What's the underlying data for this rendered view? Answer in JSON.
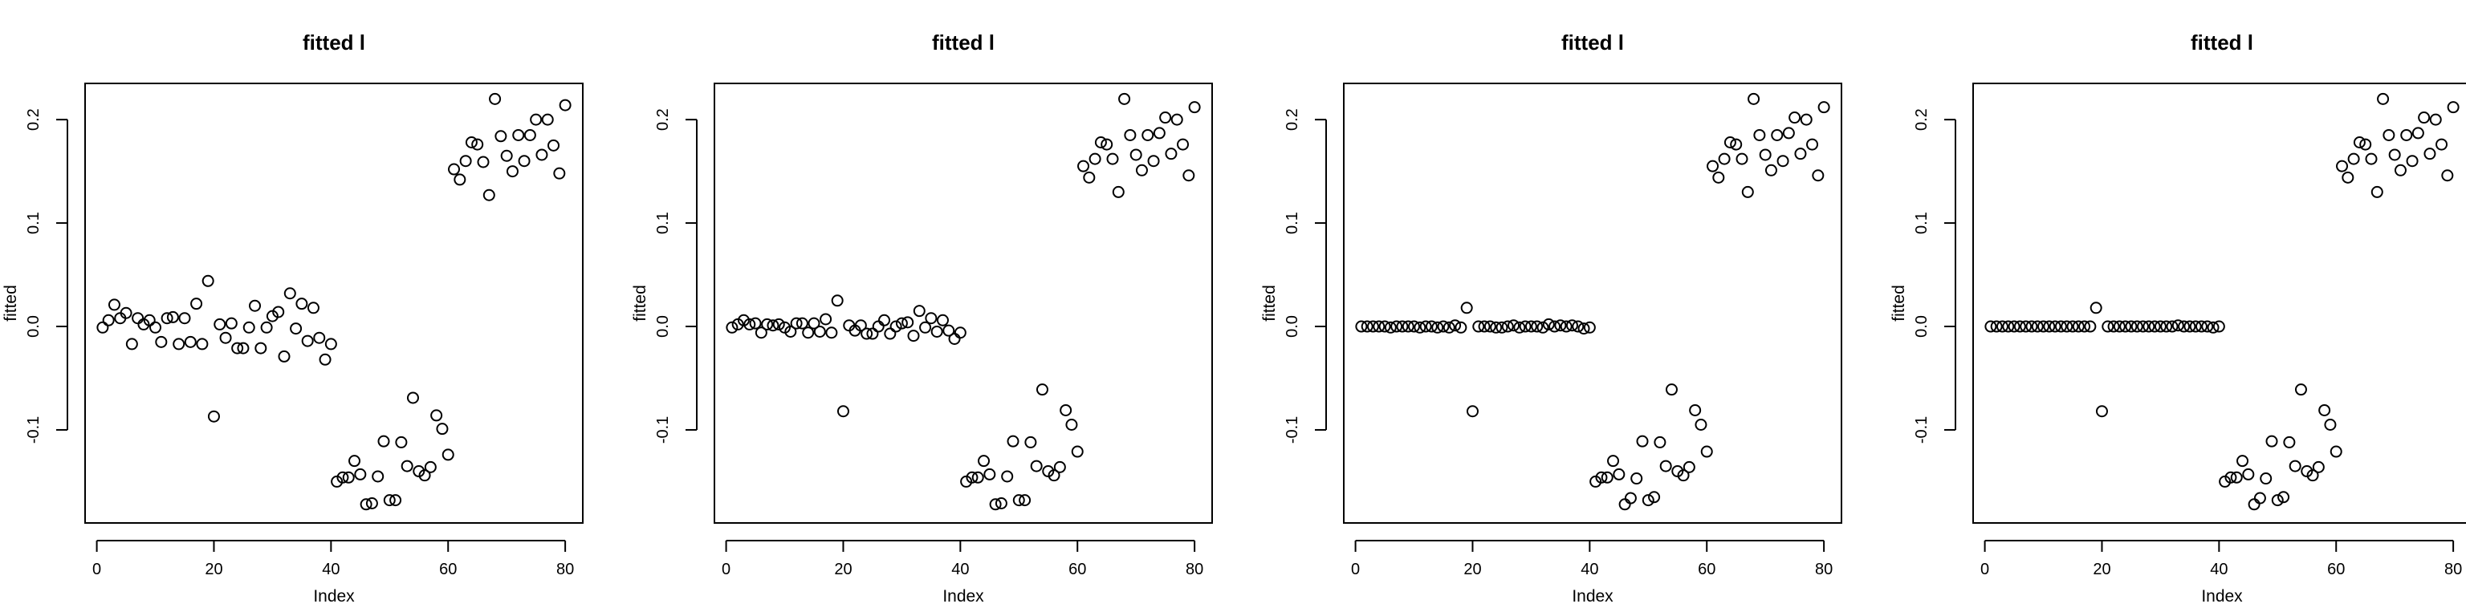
{
  "chart_data": [
    {
      "type": "scatter",
      "title": "fitted l",
      "xlabel": "Index",
      "ylabel": "fitted",
      "xlim": [
        -2,
        83
      ],
      "ylim": [
        -0.19,
        0.235
      ],
      "xticks": [
        0,
        20,
        40,
        60,
        80
      ],
      "yticks": [
        -0.1,
        0.0,
        0.1,
        0.2
      ],
      "grid": false,
      "x": [
        1,
        2,
        3,
        4,
        5,
        6,
        7,
        8,
        9,
        10,
        11,
        12,
        13,
        14,
        15,
        16,
        17,
        18,
        19,
        20,
        21,
        22,
        23,
        24,
        25,
        26,
        27,
        28,
        29,
        30,
        31,
        32,
        33,
        34,
        35,
        36,
        37,
        38,
        39,
        40,
        41,
        42,
        43,
        44,
        45,
        46,
        47,
        48,
        49,
        50,
        51,
        52,
        53,
        54,
        55,
        56,
        57,
        58,
        59,
        60,
        61,
        62,
        63,
        64,
        65,
        66,
        67,
        68,
        69,
        70,
        71,
        72,
        73,
        74,
        75,
        76,
        77,
        78,
        79,
        80
      ],
      "y": [
        -0.001,
        0.006,
        0.021,
        0.008,
        0.013,
        -0.017,
        0.008,
        0.002,
        0.006,
        -0.001,
        -0.015,
        0.008,
        0.009,
        -0.017,
        0.008,
        -0.015,
        0.022,
        -0.017,
        0.044,
        -0.087,
        0.002,
        -0.011,
        0.003,
        -0.021,
        -0.021,
        -0.001,
        0.02,
        -0.021,
        -0.001,
        0.01,
        0.014,
        -0.029,
        0.032,
        -0.002,
        0.022,
        -0.014,
        0.018,
        -0.011,
        -0.032,
        -0.017,
        -0.15,
        -0.146,
        -0.146,
        -0.13,
        -0.143,
        -0.172,
        -0.171,
        -0.145,
        -0.111,
        -0.168,
        -0.168,
        -0.112,
        -0.135,
        -0.069,
        -0.14,
        -0.144,
        -0.136,
        -0.086,
        -0.099,
        -0.124,
        0.152,
        0.142,
        0.16,
        0.178,
        0.176,
        0.159,
        0.127,
        0.22,
        0.184,
        0.165,
        0.15,
        0.185,
        0.16,
        0.185,
        0.2,
        0.166,
        0.2,
        0.175,
        0.148,
        0.214
      ]
    },
    {
      "type": "scatter",
      "title": "fitted l",
      "xlabel": "Index",
      "ylabel": "fitted",
      "xlim": [
        -2,
        83
      ],
      "ylim": [
        -0.19,
        0.235
      ],
      "xticks": [
        0,
        20,
        40,
        60,
        80
      ],
      "yticks": [
        -0.1,
        0.0,
        0.1,
        0.2
      ],
      "grid": false,
      "x": [
        1,
        2,
        3,
        4,
        5,
        6,
        7,
        8,
        9,
        10,
        11,
        12,
        13,
        14,
        15,
        16,
        17,
        18,
        19,
        20,
        21,
        22,
        23,
        24,
        25,
        26,
        27,
        28,
        29,
        30,
        31,
        32,
        33,
        34,
        35,
        36,
        37,
        38,
        39,
        40,
        41,
        42,
        43,
        44,
        45,
        46,
        47,
        48,
        49,
        50,
        51,
        52,
        53,
        54,
        55,
        56,
        57,
        58,
        59,
        60,
        61,
        62,
        63,
        64,
        65,
        66,
        67,
        68,
        69,
        70,
        71,
        72,
        73,
        74,
        75,
        76,
        77,
        78,
        79,
        80
      ],
      "y": [
        -0.001,
        0.002,
        0.006,
        0.002,
        0.003,
        -0.006,
        0.002,
        0.001,
        0.002,
        -0.001,
        -0.005,
        0.003,
        0.003,
        -0.006,
        0.003,
        -0.005,
        0.007,
        -0.006,
        0.025,
        -0.082,
        0.001,
        -0.004,
        0.001,
        -0.007,
        -0.007,
        0.0,
        0.006,
        -0.007,
        0.0,
        0.003,
        0.004,
        -0.009,
        0.015,
        -0.001,
        0.008,
        -0.005,
        0.006,
        -0.004,
        -0.012,
        -0.006,
        -0.15,
        -0.146,
        -0.146,
        -0.13,
        -0.143,
        -0.172,
        -0.171,
        -0.145,
        -0.111,
        -0.168,
        -0.168,
        -0.112,
        -0.135,
        -0.061,
        -0.14,
        -0.144,
        -0.136,
        -0.081,
        -0.095,
        -0.121,
        0.155,
        0.144,
        0.162,
        0.178,
        0.176,
        0.162,
        0.13,
        0.22,
        0.185,
        0.166,
        0.151,
        0.185,
        0.16,
        0.187,
        0.202,
        0.167,
        0.2,
        0.176,
        0.146,
        0.212
      ]
    },
    {
      "type": "scatter",
      "title": "fitted l",
      "xlabel": "Index",
      "ylabel": "fitted",
      "xlim": [
        -2,
        83
      ],
      "ylim": [
        -0.19,
        0.235
      ],
      "xticks": [
        0,
        20,
        40,
        60,
        80
      ],
      "yticks": [
        -0.1,
        0.0,
        0.1,
        0.2
      ],
      "grid": false,
      "x": [
        1,
        2,
        3,
        4,
        5,
        6,
        7,
        8,
        9,
        10,
        11,
        12,
        13,
        14,
        15,
        16,
        17,
        18,
        19,
        20,
        21,
        22,
        23,
        24,
        25,
        26,
        27,
        28,
        29,
        30,
        31,
        32,
        33,
        34,
        35,
        36,
        37,
        38,
        39,
        40,
        41,
        42,
        43,
        44,
        45,
        46,
        47,
        48,
        49,
        50,
        51,
        52,
        53,
        54,
        55,
        56,
        57,
        58,
        59,
        60,
        61,
        62,
        63,
        64,
        65,
        66,
        67,
        68,
        69,
        70,
        71,
        72,
        73,
        74,
        75,
        76,
        77,
        78,
        79,
        80
      ],
      "y": [
        0.0,
        0.0,
        0.0,
        0.0,
        0.0,
        -0.001,
        0.0,
        0.0,
        0.0,
        0.0,
        -0.001,
        0.0,
        0.0,
        -0.001,
        0.0,
        -0.001,
        0.001,
        -0.001,
        0.018,
        -0.082,
        0.0,
        0.0,
        0.0,
        -0.001,
        -0.001,
        0.0,
        0.001,
        -0.001,
        0.0,
        0.0,
        0.0,
        -0.001,
        0.002,
        0.0,
        0.001,
        0.0,
        0.001,
        0.0,
        -0.002,
        -0.001,
        -0.15,
        -0.146,
        -0.146,
        -0.13,
        -0.143,
        -0.172,
        -0.166,
        -0.147,
        -0.111,
        -0.168,
        -0.165,
        -0.112,
        -0.135,
        -0.061,
        -0.14,
        -0.144,
        -0.136,
        -0.081,
        -0.095,
        -0.121,
        0.155,
        0.144,
        0.162,
        0.178,
        0.176,
        0.162,
        0.13,
        0.22,
        0.185,
        0.166,
        0.151,
        0.185,
        0.16,
        0.187,
        0.202,
        0.167,
        0.2,
        0.176,
        0.146,
        0.212
      ]
    },
    {
      "type": "scatter",
      "title": "fitted l",
      "xlabel": "Index",
      "ylabel": "fitted",
      "xlim": [
        -2,
        83
      ],
      "ylim": [
        -0.19,
        0.235
      ],
      "xticks": [
        0,
        20,
        40,
        60,
        80
      ],
      "yticks": [
        -0.1,
        0.0,
        0.1,
        0.2
      ],
      "grid": false,
      "x": [
        1,
        2,
        3,
        4,
        5,
        6,
        7,
        8,
        9,
        10,
        11,
        12,
        13,
        14,
        15,
        16,
        17,
        18,
        19,
        20,
        21,
        22,
        23,
        24,
        25,
        26,
        27,
        28,
        29,
        30,
        31,
        32,
        33,
        34,
        35,
        36,
        37,
        38,
        39,
        40,
        41,
        42,
        43,
        44,
        45,
        46,
        47,
        48,
        49,
        50,
        51,
        52,
        53,
        54,
        55,
        56,
        57,
        58,
        59,
        60,
        61,
        62,
        63,
        64,
        65,
        66,
        67,
        68,
        69,
        70,
        71,
        72,
        73,
        74,
        75,
        76,
        77,
        78,
        79,
        80
      ],
      "y": [
        0.0,
        0.0,
        0.0,
        0.0,
        0.0,
        0.0,
        0.0,
        0.0,
        0.0,
        0.0,
        0.0,
        0.0,
        0.0,
        0.0,
        0.0,
        0.0,
        0.0,
        0.0,
        0.018,
        -0.082,
        0.0,
        0.0,
        0.0,
        0.0,
        0.0,
        0.0,
        0.0,
        0.0,
        0.0,
        0.0,
        0.0,
        0.0,
        0.001,
        0.0,
        0.0,
        0.0,
        0.0,
        0.0,
        -0.001,
        0.0,
        -0.15,
        -0.146,
        -0.146,
        -0.13,
        -0.143,
        -0.172,
        -0.166,
        -0.147,
        -0.111,
        -0.168,
        -0.165,
        -0.112,
        -0.135,
        -0.061,
        -0.14,
        -0.144,
        -0.136,
        -0.081,
        -0.095,
        -0.121,
        0.155,
        0.144,
        0.162,
        0.178,
        0.176,
        0.162,
        0.13,
        0.22,
        0.185,
        0.166,
        0.151,
        0.185,
        0.16,
        0.187,
        0.202,
        0.167,
        0.2,
        0.176,
        0.146,
        0.212
      ]
    }
  ]
}
